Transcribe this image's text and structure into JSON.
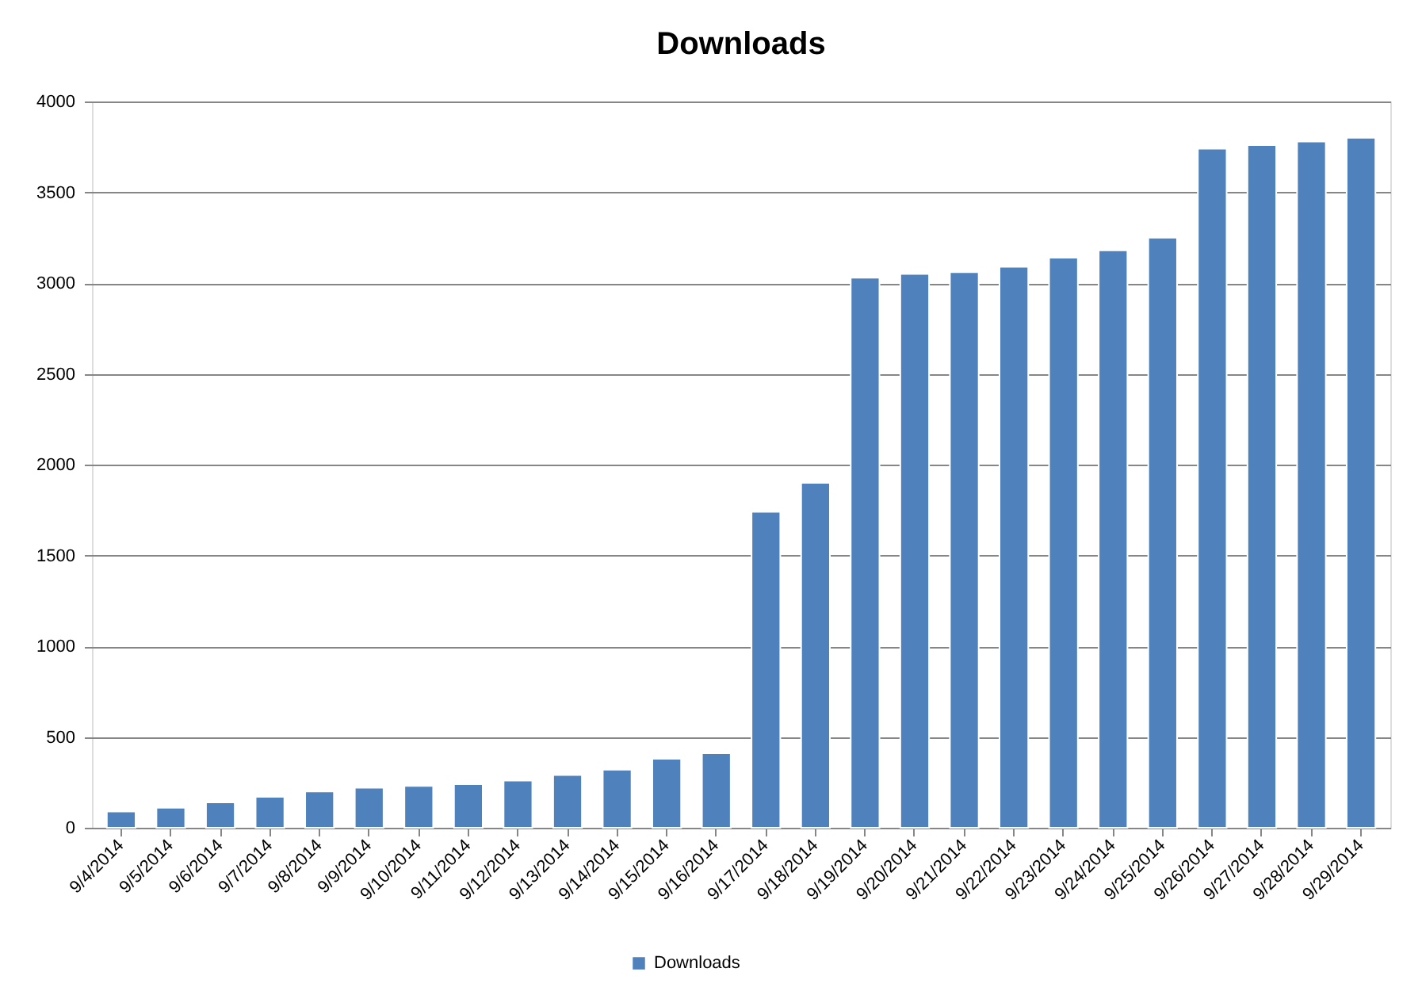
{
  "chart_data": {
    "type": "bar",
    "title": "Downloads",
    "categories": [
      "9/4/2014",
      "9/5/2014",
      "9/6/2014",
      "9/7/2014",
      "9/8/2014",
      "9/9/2014",
      "9/10/2014",
      "9/11/2014",
      "9/12/2014",
      "9/13/2014",
      "9/14/2014",
      "9/15/2014",
      "9/16/2014",
      "9/17/2014",
      "9/18/2014",
      "9/19/2014",
      "9/20/2014",
      "9/21/2014",
      "9/22/2014",
      "9/23/2014",
      "9/24/2014",
      "9/25/2014",
      "9/26/2014",
      "9/27/2014",
      "9/28/2014",
      "9/29/2014"
    ],
    "series": [
      {
        "name": "Downloads",
        "color": "#4f81bd",
        "values": [
          90,
          110,
          140,
          170,
          200,
          220,
          230,
          240,
          260,
          290,
          320,
          380,
          410,
          1740,
          1900,
          3030,
          3050,
          3060,
          3090,
          3140,
          3180,
          3250,
          3740,
          3760,
          3780,
          3800
        ]
      }
    ],
    "ylim": [
      0,
      4000
    ],
    "yticks": [
      0,
      500,
      1000,
      1500,
      2000,
      2500,
      3000,
      3500,
      4000
    ],
    "grid": "y",
    "legend": "bottom"
  }
}
